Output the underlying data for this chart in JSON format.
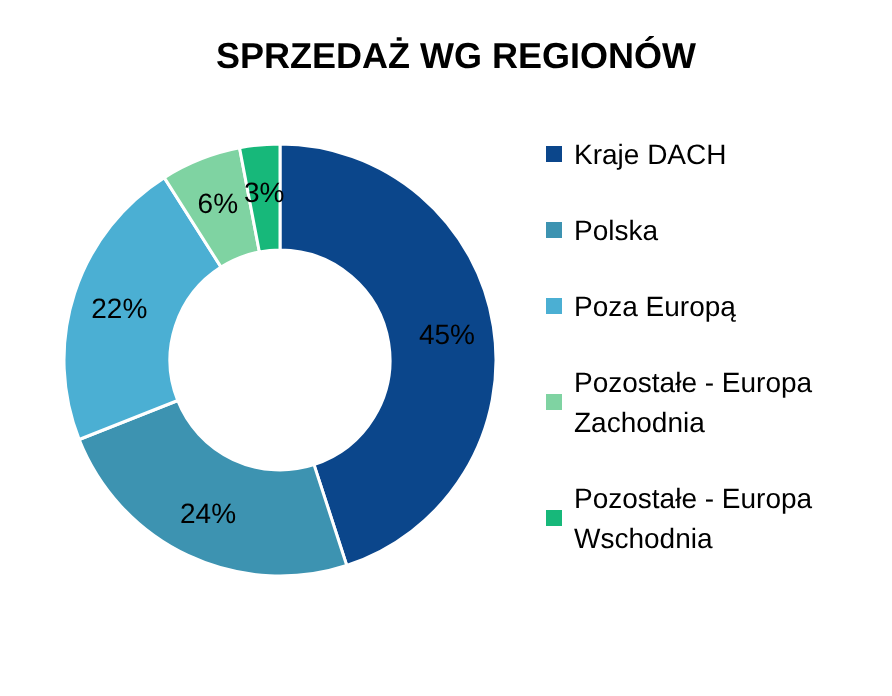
{
  "chart_data": {
    "type": "donut",
    "title": "SPRZEDAŻ WG REGIONÓW",
    "categories": [
      "Kraje DACH",
      "Polska",
      "Poza Europą",
      "Pozostałe - Europa Zachodnia",
      "Pozostałe - Europa Wschodnia"
    ],
    "values": [
      45,
      24,
      22,
      6,
      3
    ],
    "value_labels": [
      "45%",
      "24%",
      "22%",
      "6%",
      "3%"
    ],
    "colors": [
      "#0b468b",
      "#3d93b1",
      "#4bafd3",
      "#7fd3a2",
      "#17b87a"
    ],
    "legend": "right"
  }
}
